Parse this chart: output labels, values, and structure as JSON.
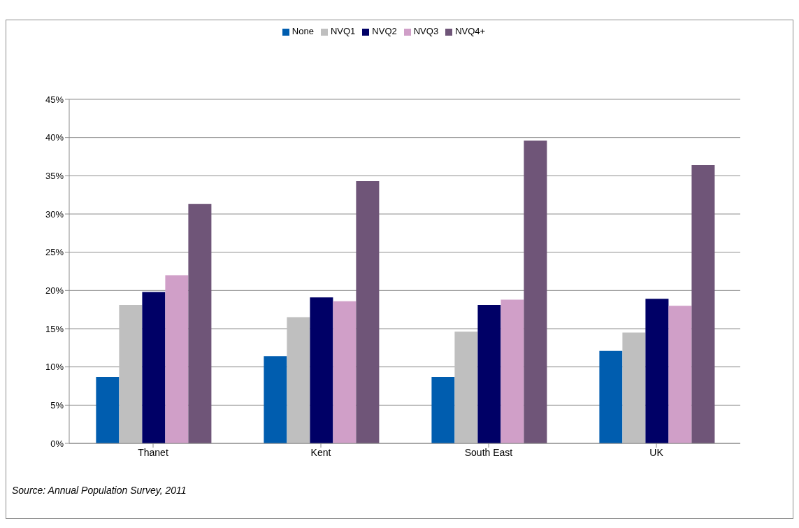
{
  "chart_data": {
    "type": "bar",
    "categories": [
      "Thanet",
      "Kent",
      "South East",
      "UK"
    ],
    "series": [
      {
        "name": "None",
        "color": "#005daf",
        "values": [
          8.7,
          11.4,
          8.7,
          12.1
        ]
      },
      {
        "name": "NVQ1",
        "color": "#bfbfbf",
        "values": [
          18.1,
          16.5,
          14.6,
          14.5
        ]
      },
      {
        "name": "NVQ2",
        "color": "#000066",
        "values": [
          19.8,
          19.1,
          18.1,
          18.9
        ]
      },
      {
        "name": "NVQ3",
        "color": "#d09fc8",
        "values": [
          22.0,
          18.6,
          18.8,
          18.0
        ]
      },
      {
        "name": "NVQ4+",
        "color": "#6f5578",
        "values": [
          31.3,
          34.3,
          39.6,
          36.4
        ]
      }
    ],
    "ylim": [
      0,
      45
    ],
    "yticks": [
      {
        "value": 0,
        "label": "0%"
      },
      {
        "value": 5,
        "label": "5%"
      },
      {
        "value": 10,
        "label": "10%"
      },
      {
        "value": 15,
        "label": "15%"
      },
      {
        "value": 20,
        "label": "20%"
      },
      {
        "value": 25,
        "label": "25%"
      },
      {
        "value": 30,
        "label": "30%"
      },
      {
        "value": 35,
        "label": "35%"
      },
      {
        "value": 40,
        "label": "40%"
      },
      {
        "value": 45,
        "label": "45%"
      }
    ],
    "grid": "y",
    "legend": "top",
    "annotations": [
      "Source: Annual Population Survey, 2011"
    ]
  }
}
